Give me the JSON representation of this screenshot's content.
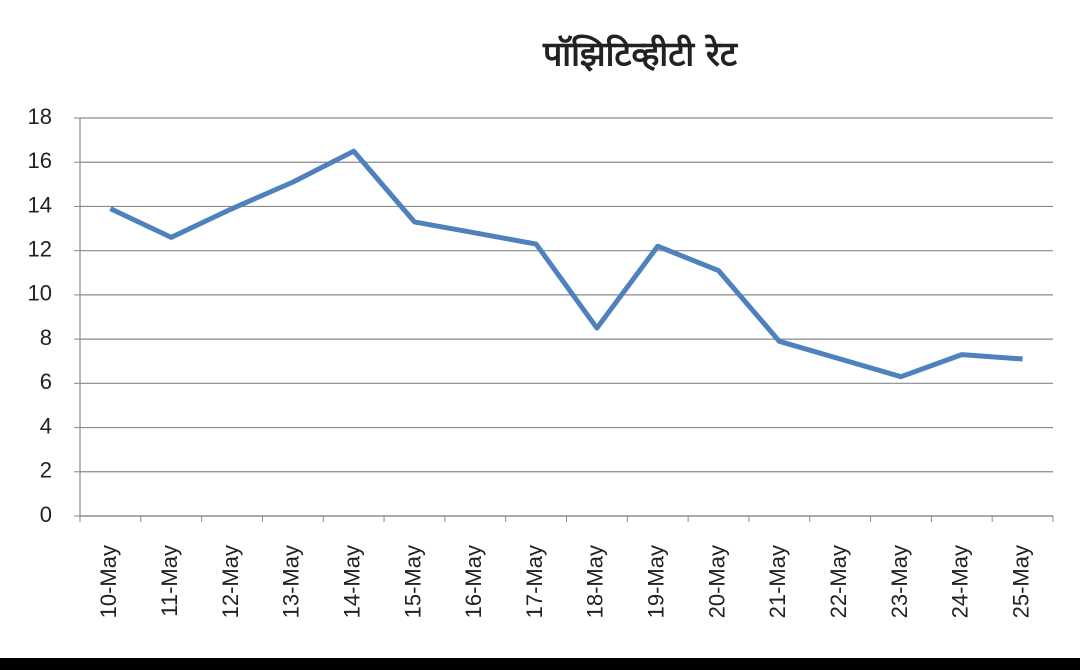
{
  "chart_data": {
    "type": "line",
    "title": "पॉझिटिव्हीटी रेट",
    "categories": [
      "10-May",
      "11-May",
      "12-May",
      "13-May",
      "14-May",
      "15-May",
      "16-May",
      "17-May",
      "18-May",
      "19-May",
      "20-May",
      "21-May",
      "22-May",
      "23-May",
      "24-May",
      "25-May"
    ],
    "values": [
      13.9,
      12.6,
      13.9,
      15.1,
      16.5,
      13.3,
      12.8,
      12.3,
      8.5,
      12.2,
      11.1,
      7.9,
      7.1,
      6.3,
      7.3,
      7.1
    ],
    "color": "#4f81bd",
    "ylim": [
      0,
      18
    ],
    "yticks": [
      0,
      2,
      4,
      6,
      8,
      10,
      12,
      14,
      16,
      18
    ],
    "grid": true
  }
}
